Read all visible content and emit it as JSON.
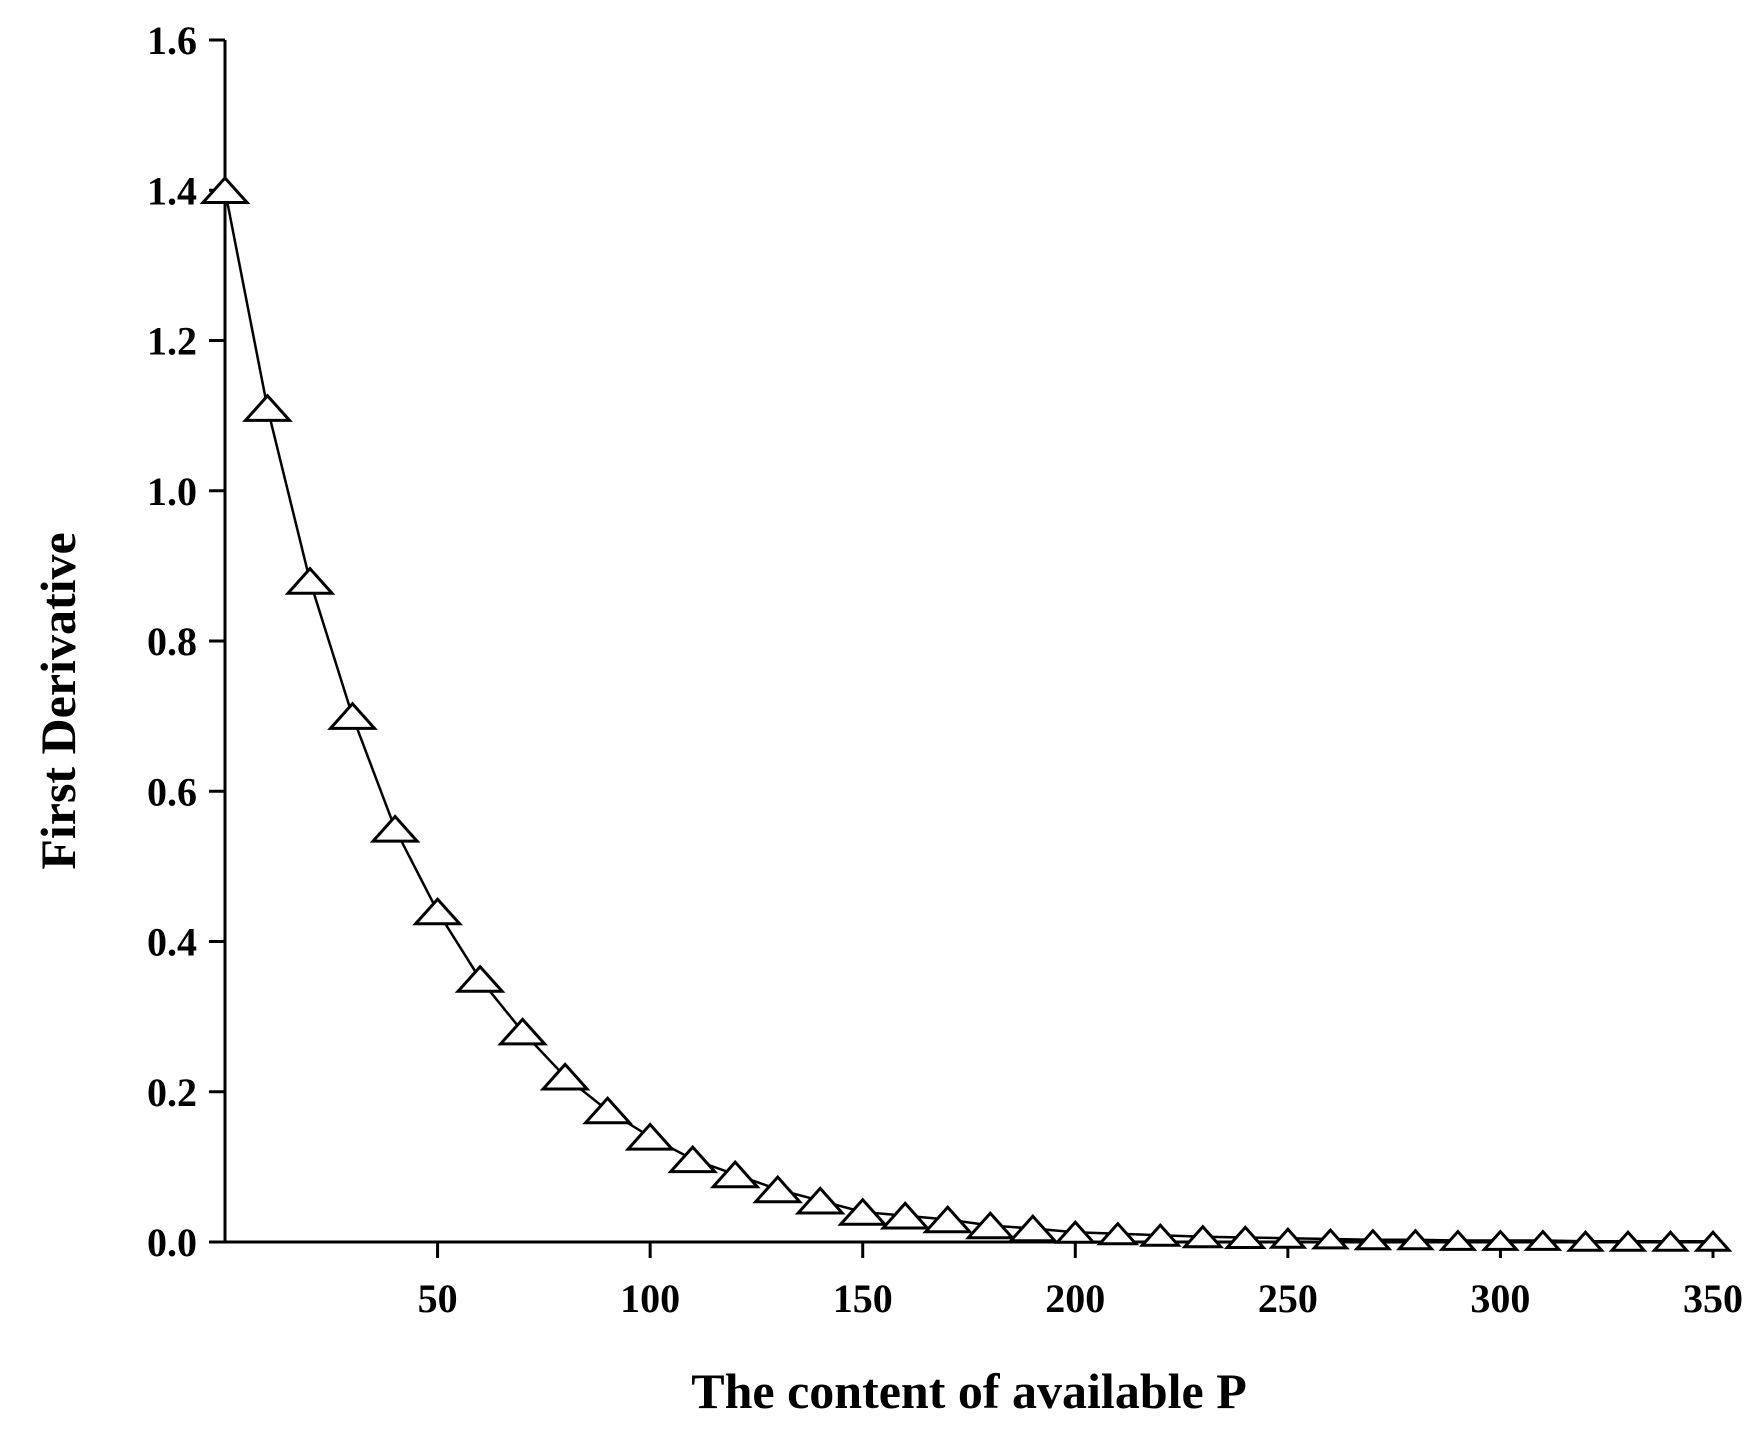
{
  "chart_data": {
    "type": "line",
    "title": "",
    "xlabel": "The content of available P",
    "ylabel": "First  Derivative",
    "xlim": [
      0,
      350
    ],
    "ylim": [
      0.0,
      1.6
    ],
    "x_ticks": [
      50,
      100,
      150,
      200,
      250,
      300,
      350
    ],
    "x_tick_labels": [
      "50",
      "100",
      "150",
      "200",
      "250",
      "300",
      "350"
    ],
    "y_ticks": [
      0.0,
      0.2,
      0.4,
      0.6,
      0.8,
      1.0,
      1.2,
      1.4,
      1.6
    ],
    "y_tick_labels": [
      "0.0",
      "0.2",
      "0.4",
      "0.6",
      "0.8",
      "1.0",
      "1.2",
      "1.4",
      "1.6"
    ],
    "grid": false,
    "legend": "none",
    "series": [
      {
        "marker": "open-triangle",
        "color": "#000000",
        "x": [
          0,
          10,
          20,
          30,
          40,
          50,
          60,
          70,
          80,
          90,
          100,
          110,
          120,
          130,
          140,
          150,
          160,
          170,
          180,
          190,
          200,
          210,
          220,
          230,
          240,
          250,
          260,
          270,
          280,
          290,
          300,
          310,
          320,
          330,
          340,
          350
        ],
        "y": [
          1.4,
          1.11,
          0.88,
          0.7,
          0.55,
          0.44,
          0.35,
          0.28,
          0.22,
          0.175,
          0.14,
          0.11,
          0.09,
          0.07,
          0.055,
          0.04,
          0.035,
          0.03,
          0.022,
          0.018,
          0.013,
          0.011,
          0.009,
          0.007,
          0.006,
          0.005,
          0.004,
          0.003,
          0.003,
          0.002,
          0.002,
          0.002,
          0.001,
          0.001,
          0.001,
          0.001
        ]
      }
    ]
  }
}
